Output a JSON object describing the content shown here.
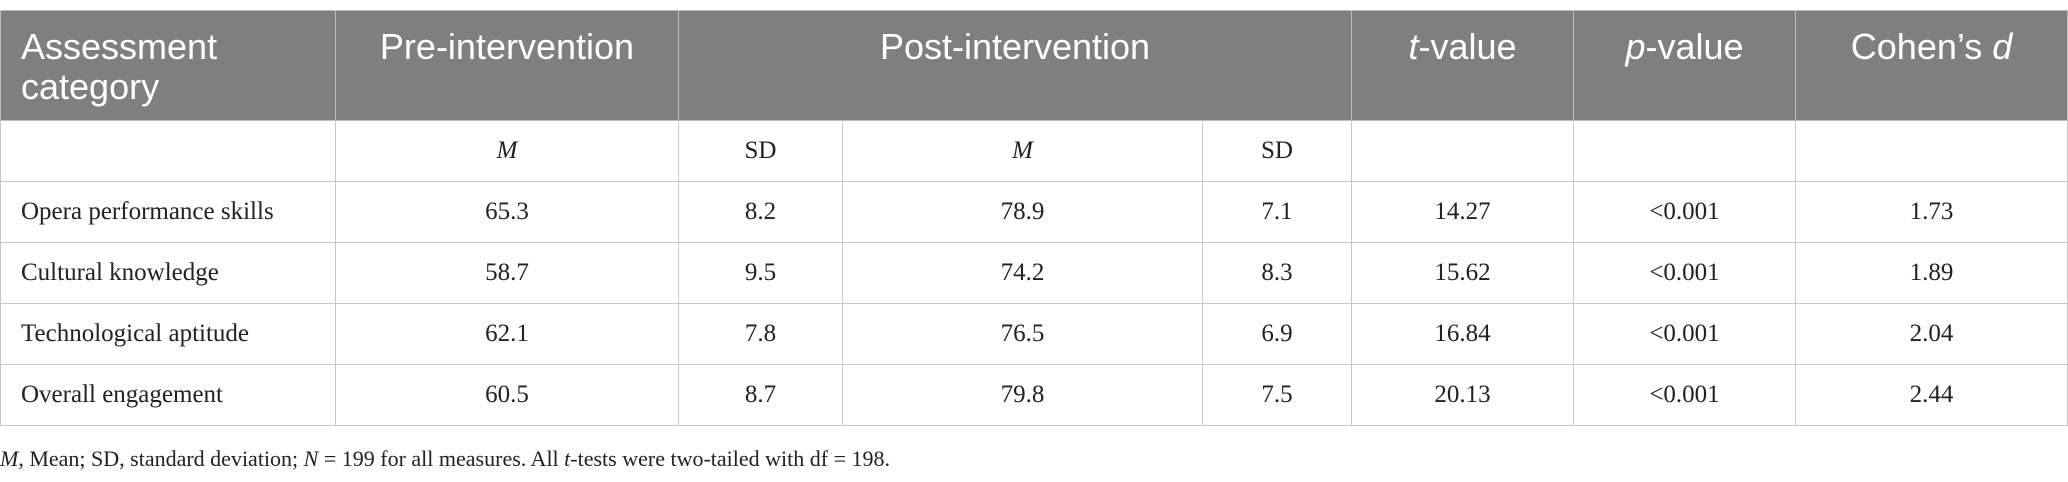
{
  "table": {
    "header": {
      "category": "Assessment category",
      "pre": "Pre-intervention",
      "post": "Post-intervention",
      "t_var": "t",
      "t_suffix": "-value",
      "p_var": "p",
      "p_suffix": "-value",
      "cohen_prefix": "Cohen’s ",
      "cohen_var": "d"
    },
    "subheader": {
      "pre_m": "M",
      "pre_sd": "SD",
      "post_m": "M",
      "post_sd": "SD"
    },
    "rows": [
      {
        "category": "Opera performance skills",
        "pre_m": "65.3",
        "pre_sd": "8.2",
        "post_m": "78.9",
        "post_sd": "7.1",
        "t": "14.27",
        "p": "<0.001",
        "d": "1.73"
      },
      {
        "category": "Cultural knowledge",
        "pre_m": "58.7",
        "pre_sd": "9.5",
        "post_m": "74.2",
        "post_sd": "8.3",
        "t": "15.62",
        "p": "<0.001",
        "d": "1.89"
      },
      {
        "category": "Technological aptitude",
        "pre_m": "62.1",
        "pre_sd": "7.8",
        "post_m": "76.5",
        "post_sd": "6.9",
        "t": "16.84",
        "p": "<0.001",
        "d": "2.04"
      },
      {
        "category": "Overall engagement",
        "pre_m": "60.5",
        "pre_sd": "8.7",
        "post_m": "79.8",
        "post_sd": "7.5",
        "t": "20.13",
        "p": "<0.001",
        "d": "2.44"
      }
    ]
  },
  "footnote": {
    "m_var": "M",
    "part1": ", Mean; SD, standard deviation; ",
    "n_var": "N",
    "part2": " = 199 for all measures. All ",
    "t_var": "t",
    "part3": "-tests were two-tailed with df = 198."
  }
}
